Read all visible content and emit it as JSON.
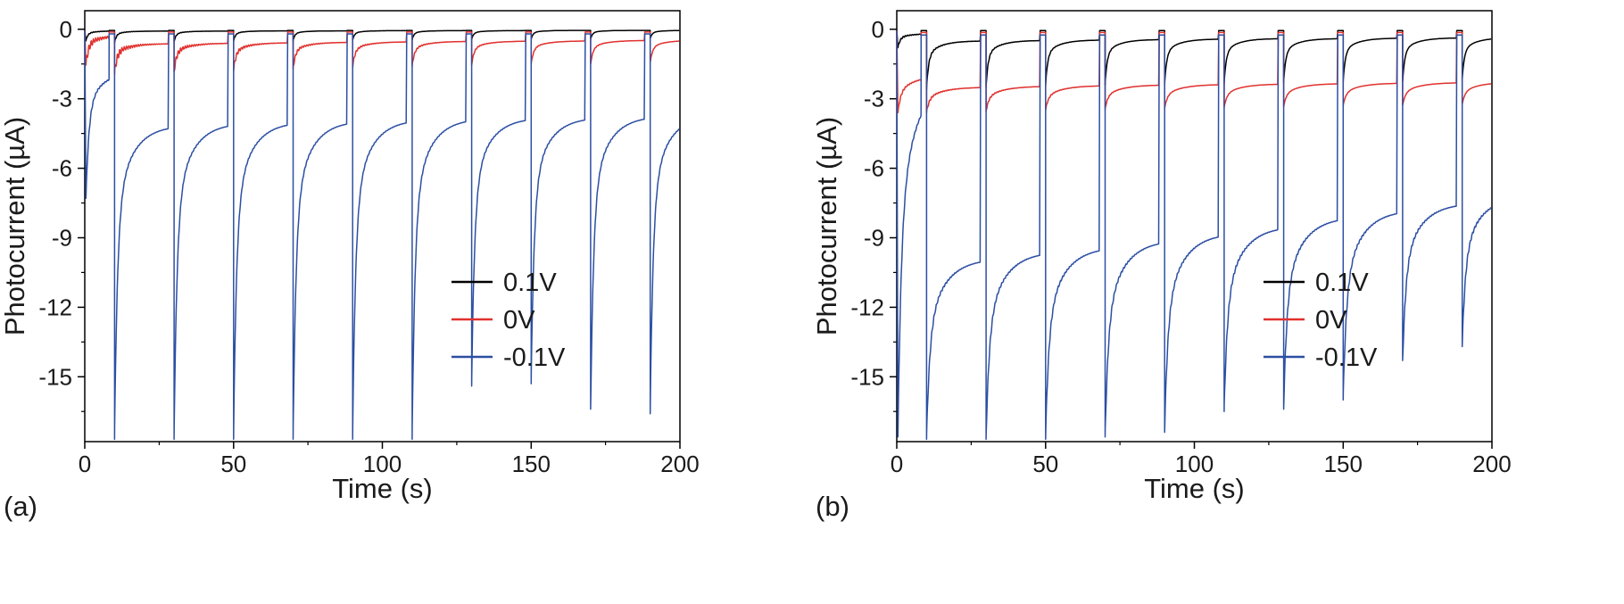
{
  "figure": {
    "background": "#ffffff",
    "panel_letters": [
      "(a)",
      "(b)"
    ]
  },
  "chart_data": [
    {
      "type": "line",
      "panel_label": "(a)",
      "xlabel": "Time (s)",
      "ylabel": "Photocurrent (µA)",
      "xlim": [
        0,
        200
      ],
      "ylim": [
        -17.8,
        0.8
      ],
      "xticks": [
        0,
        50,
        100,
        150,
        200
      ],
      "yticks": [
        0,
        -3,
        -6,
        -9,
        -12,
        -15
      ],
      "x_minor_step": 25,
      "y_minor_step": 1.5,
      "grid": false,
      "legend_position": "right-center",
      "light_cycle": {
        "start": 10,
        "period": 20,
        "count": 10,
        "off_gap": 1.8
      },
      "legend": [
        {
          "label": "0.1V",
          "color": "#000000"
        },
        {
          "label": "0V",
          "color": "#e0312e"
        },
        {
          "label": "-0.1V",
          "color": "#2c4fa3"
        }
      ],
      "series": [
        {
          "name": "0.1V",
          "color": "#000000",
          "baseline": -0.05,
          "initial": {
            "start": -0.5,
            "end": -0.07
          },
          "peaks": [
            -0.6,
            -0.55,
            -0.52,
            -0.5,
            -0.48,
            -0.46,
            -0.45,
            -0.44,
            -0.42,
            -0.42
          ],
          "ends": [
            -0.08,
            -0.08,
            -0.07,
            -0.07,
            -0.06,
            -0.06,
            -0.06,
            -0.05,
            -0.05,
            -0.05
          ],
          "shape": {
            "fast_frac": 0.75,
            "tau_fast": 0.6,
            "tau_slow": 3.5,
            "noise": 0.02,
            "noise_fade": true
          }
        },
        {
          "name": "0V",
          "color": "#e0312e",
          "baseline": -0.12,
          "initial": {
            "start": -1.55,
            "end": -0.25
          },
          "peaks": [
            -1.95,
            -1.85,
            -1.8,
            -1.72,
            -1.65,
            -1.6,
            -1.55,
            -1.52,
            -1.5,
            -1.45
          ],
          "ends": [
            -0.62,
            -0.6,
            -0.58,
            -0.56,
            -0.54,
            -0.52,
            -0.51,
            -0.5,
            -0.48,
            -0.47
          ],
          "shape": {
            "fast_frac": 0.7,
            "tau_fast": 0.8,
            "tau_slow": 5.0,
            "noise": 0.17,
            "noise_fade": true
          }
        },
        {
          "name": "-0.1V",
          "color": "#2c4fa3",
          "baseline": -0.2,
          "initial": {
            "start": -7.3,
            "end": -1.8
          },
          "peaks": [
            -17.7,
            -17.7,
            -17.7,
            -17.7,
            -17.7,
            -17.7,
            -15.4,
            -15.3,
            -16.4,
            -16.6
          ],
          "ends": [
            -4.15,
            -4.05,
            -4.0,
            -3.95,
            -3.9,
            -3.85,
            -3.82,
            -3.8,
            -3.75,
            -3.7
          ],
          "shape": {
            "fast_frac": 0.72,
            "tau_fast": 1.0,
            "tau_slow": 5.5,
            "noise": 0.08,
            "noise_fade": false
          }
        }
      ]
    },
    {
      "type": "line",
      "panel_label": "(b)",
      "xlabel": "Time (s)",
      "ylabel": "Photocurrent (µA)",
      "xlim": [
        0,
        200
      ],
      "ylim": [
        -17.8,
        0.8
      ],
      "xticks": [
        0,
        50,
        100,
        150,
        200
      ],
      "yticks": [
        0,
        -3,
        -6,
        -9,
        -12,
        -15
      ],
      "x_minor_step": 25,
      "y_minor_step": 1.5,
      "grid": false,
      "legend_position": "right-center",
      "light_cycle": {
        "start": 10,
        "period": 20,
        "count": 10,
        "off_gap": 1.8
      },
      "legend": [
        {
          "label": "0.1V",
          "color": "#000000"
        },
        {
          "label": "0V",
          "color": "#e0312e"
        },
        {
          "label": "-0.1V",
          "color": "#2c4fa3"
        }
      ],
      "series": [
        {
          "name": "0.1V",
          "color": "#000000",
          "baseline": -0.06,
          "initial": {
            "start": -0.8,
            "end": -0.18
          },
          "peaks": [
            -2.6,
            -2.5,
            -2.45,
            -2.4,
            -2.38,
            -2.35,
            -2.3,
            -2.28,
            -2.25,
            -2.2
          ],
          "ends": [
            -0.5,
            -0.48,
            -0.46,
            -0.44,
            -0.42,
            -0.4,
            -0.4,
            -0.38,
            -0.37,
            -0.36
          ],
          "shape": {
            "fast_frac": 0.7,
            "tau_fast": 0.7,
            "tau_slow": 4.5,
            "noise": 0.04,
            "noise_fade": true
          }
        },
        {
          "name": "0V",
          "color": "#e0312e",
          "baseline": -0.14,
          "initial": {
            "start": -3.6,
            "end": -2.0
          },
          "peaks": [
            -3.6,
            -3.55,
            -3.5,
            -3.45,
            -3.42,
            -3.38,
            -3.35,
            -3.3,
            -3.28,
            -3.25
          ],
          "ends": [
            -2.5,
            -2.46,
            -2.43,
            -2.4,
            -2.38,
            -2.36,
            -2.34,
            -2.32,
            -2.3,
            -2.28
          ],
          "shape": {
            "fast_frac": 0.55,
            "tau_fast": 0.9,
            "tau_slow": 5.5,
            "noise": 0.05,
            "noise_fade": true
          }
        },
        {
          "name": "-0.1V",
          "color": "#2c4fa3",
          "baseline": -0.25,
          "initial": {
            "start": -17.6,
            "end": -2.0
          },
          "peaks": [
            -17.7,
            -17.7,
            -17.7,
            -17.6,
            -17.4,
            -16.5,
            -16.4,
            -16.0,
            -14.3,
            -13.7
          ],
          "ends": [
            -9.9,
            -9.6,
            -9.4,
            -9.1,
            -8.8,
            -8.5,
            -8.1,
            -7.8,
            -7.5,
            -7.2
          ],
          "shape": {
            "fast_frac": 0.6,
            "tau_fast": 1.1,
            "tau_slow": 6.0,
            "noise": 0.12,
            "noise_fade": false
          }
        }
      ]
    }
  ]
}
